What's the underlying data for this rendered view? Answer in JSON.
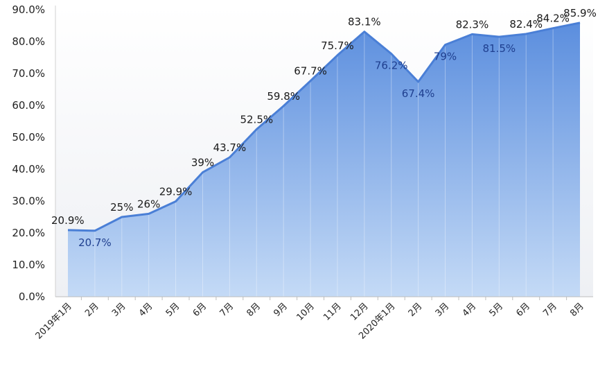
{
  "chart_data": {
    "type": "area",
    "categories": [
      "2019年1月",
      "2月",
      "3月",
      "4月",
      "5月",
      "6月",
      "7月",
      "8月",
      "9月",
      "10月",
      "11月",
      "12月",
      "2020年1月",
      "2月",
      "3月",
      "4月",
      "5月",
      "6月",
      "7月",
      "8月"
    ],
    "values": [
      20.9,
      20.7,
      25,
      26,
      29.9,
      39,
      43.7,
      52.5,
      59.8,
      67.7,
      75.7,
      83.1,
      76.2,
      67.4,
      79,
      82.3,
      81.5,
      82.4,
      84.2,
      85.9
    ],
    "data_labels": [
      "20.9%",
      "20.7%",
      "25%",
      "26%",
      "29.9%",
      "39%",
      "43.7%",
      "52.5%",
      "59.8%",
      "67.7%",
      "75.7%",
      "83.1%",
      "76.2%",
      "67.4%",
      "79%",
      "82.3%",
      "81.5%",
      "82.4%",
      "84.2%",
      "85.9%"
    ],
    "label_below": [
      false,
      true,
      false,
      false,
      false,
      false,
      false,
      false,
      false,
      false,
      false,
      false,
      true,
      true,
      true,
      false,
      true,
      false,
      false,
      false
    ],
    "y_ticks": [
      "0.0%",
      "10.0%",
      "20.0%",
      "30.0%",
      "40.0%",
      "50.0%",
      "60.0%",
      "70.0%",
      "80.0%",
      "90.0%"
    ],
    "ylim": [
      0,
      90
    ],
    "title": "",
    "xlabel": "",
    "ylabel": "",
    "grid": false,
    "legend": "none",
    "colors": {
      "line": "#4a7fd6",
      "fill_top": "#5b8ede",
      "fill_bottom": "#c4daf6",
      "label_dark": "#1a1a1a",
      "label_blue": "#1f3f8f"
    }
  }
}
